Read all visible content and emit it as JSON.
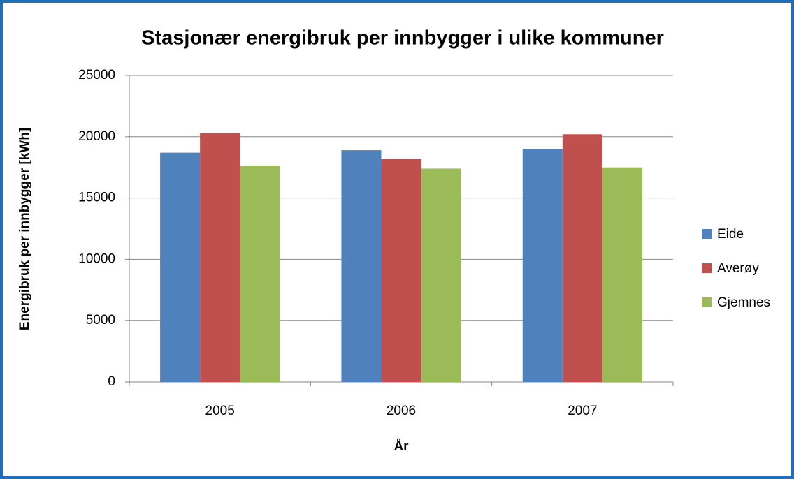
{
  "chart_data": {
    "type": "bar",
    "title": "Stasjonær energibruk per innbygger i ulike kommuner",
    "x_label": "År",
    "y_label": "Energibruk per innbygger [kWh]",
    "categories": [
      "2005",
      "2006",
      "2007"
    ],
    "series": [
      {
        "name": "Eide",
        "color": "#4f81bd",
        "values": [
          18700,
          18900,
          19000
        ]
      },
      {
        "name": "Averøy",
        "color": "#c0504d",
        "values": [
          20300,
          18200,
          20200
        ]
      },
      {
        "name": "Gjemnes",
        "color": "#9bbb59",
        "values": [
          17600,
          17400,
          17500
        ]
      }
    ],
    "ylim": [
      0,
      25000
    ],
    "yticks": [
      0,
      5000,
      10000,
      15000,
      20000,
      25000
    ],
    "grid": true,
    "legend": "right"
  }
}
